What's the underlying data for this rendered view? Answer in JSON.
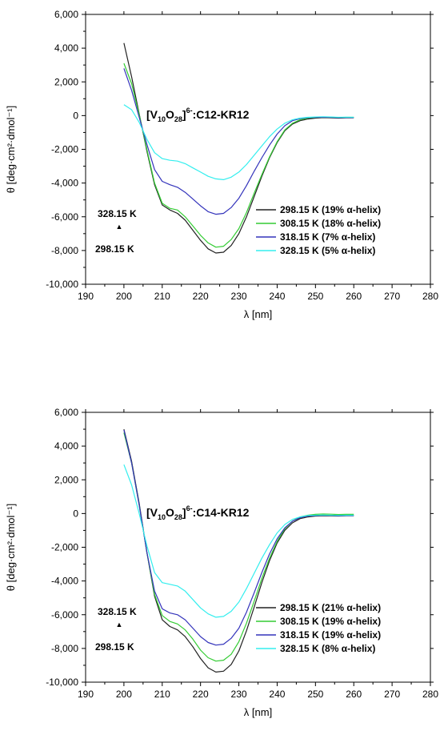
{
  "chart_data": [
    {
      "type": "line",
      "title_parts": {
        "base": "[V",
        "sub1": "10",
        "mid": "O",
        "sub2": "28",
        "close": "]",
        "sup": "6-",
        "rest": ":C12-KR12"
      },
      "xlabel": "λ [nm]",
      "ylabel": "θ [deg·cm²·dmol⁻¹]",
      "xlim": [
        190,
        280
      ],
      "ylim": [
        -10000,
        6000
      ],
      "x_ticks": [
        "190",
        "200",
        "210",
        "220",
        "230",
        "240",
        "250",
        "260",
        "270",
        "280"
      ],
      "y_ticks": [
        "6,000",
        "4,000",
        "2,000",
        "0",
        "-2,000",
        "-4,000",
        "-6,000",
        "-8,000",
        "-10,000"
      ],
      "annotation": {
        "upper": "328.15 K",
        "lower": "298.15 K",
        "arrow": "▲"
      },
      "legend_position": "lower-right",
      "series": [
        {
          "name": "298.15 K (19% α-helix)",
          "color": "#222222",
          "x": [
            200,
            202,
            204,
            206,
            208,
            210,
            212,
            214,
            216,
            218,
            220,
            222,
            224,
            226,
            228,
            230,
            232,
            234,
            236,
            238,
            240,
            242,
            244,
            246,
            248,
            250,
            252,
            254,
            256,
            258,
            260
          ],
          "y": [
            4300,
            2300,
            100,
            -2100,
            -4100,
            -5300,
            -5600,
            -5800,
            -6200,
            -6800,
            -7400,
            -7900,
            -8150,
            -8100,
            -7700,
            -7000,
            -6000,
            -4800,
            -3600,
            -2500,
            -1600,
            -900,
            -500,
            -300,
            -200,
            -150,
            -120,
            -130,
            -150,
            -130,
            -130
          ]
        },
        {
          "name": "308.15 K (18% α-helix)",
          "color": "#33cc33",
          "x": [
            200,
            202,
            204,
            206,
            208,
            210,
            212,
            214,
            216,
            218,
            220,
            222,
            224,
            226,
            228,
            230,
            232,
            234,
            236,
            238,
            240,
            242,
            244,
            246,
            248,
            250,
            252,
            254,
            256,
            258,
            260
          ],
          "y": [
            3100,
            1900,
            50,
            -2000,
            -4000,
            -5200,
            -5500,
            -5600,
            -6000,
            -6550,
            -7100,
            -7550,
            -7800,
            -7750,
            -7350,
            -6700,
            -5750,
            -4600,
            -3500,
            -2450,
            -1550,
            -850,
            -450,
            -250,
            -150,
            -100,
            -80,
            -90,
            -110,
            -100,
            -100
          ]
        },
        {
          "name": "318.15 K (7% α-helix)",
          "color": "#3333bb",
          "x": [
            200,
            202,
            204,
            206,
            208,
            210,
            212,
            214,
            216,
            218,
            220,
            222,
            224,
            226,
            228,
            230,
            232,
            234,
            236,
            238,
            240,
            242,
            244,
            246,
            248,
            250,
            252,
            254,
            256,
            258,
            260
          ],
          "y": [
            2800,
            1500,
            -100,
            -1700,
            -3200,
            -3900,
            -4100,
            -4250,
            -4550,
            -4950,
            -5350,
            -5700,
            -5850,
            -5800,
            -5450,
            -4900,
            -4150,
            -3300,
            -2500,
            -1750,
            -1100,
            -600,
            -300,
            -180,
            -120,
            -100,
            -90,
            -100,
            -120,
            -110,
            -120
          ]
        },
        {
          "name": "328.15 K (5% α-helix)",
          "color": "#33eeee",
          "x": [
            200,
            202,
            204,
            206,
            208,
            210,
            212,
            214,
            216,
            218,
            220,
            222,
            224,
            226,
            228,
            230,
            232,
            234,
            236,
            238,
            240,
            242,
            244,
            246,
            248,
            250,
            252,
            254,
            256,
            258,
            260
          ],
          "y": [
            650,
            350,
            -400,
            -1400,
            -2200,
            -2550,
            -2650,
            -2700,
            -2850,
            -3100,
            -3350,
            -3600,
            -3750,
            -3800,
            -3650,
            -3350,
            -2900,
            -2350,
            -1800,
            -1250,
            -800,
            -450,
            -250,
            -150,
            -100,
            -80,
            -70,
            -80,
            -100,
            -90,
            -100
          ]
        }
      ]
    },
    {
      "type": "line",
      "title_parts": {
        "base": "[V",
        "sub1": "10",
        "mid": "O",
        "sub2": "28",
        "close": "]",
        "sup": "6-",
        "rest": ":C14-KR12"
      },
      "xlabel": "λ [nm]",
      "ylabel": "θ [deg·cm²·dmol⁻¹]",
      "xlim": [
        190,
        280
      ],
      "ylim": [
        -10000,
        6000
      ],
      "x_ticks": [
        "190",
        "200",
        "210",
        "220",
        "230",
        "240",
        "250",
        "260",
        "270",
        "280"
      ],
      "y_ticks": [
        "6,000",
        "4,000",
        "2,000",
        "0",
        "-2,000",
        "-4,000",
        "-6,000",
        "-8,000",
        "-10,000"
      ],
      "annotation": {
        "upper": "328.15 K",
        "lower": "298.15 K",
        "arrow": "▲"
      },
      "legend_position": "lower-right",
      "series": [
        {
          "name": "298.15 K (21% α-helix)",
          "color": "#222222",
          "x": [
            200,
            202,
            204,
            206,
            208,
            210,
            212,
            214,
            216,
            218,
            220,
            222,
            224,
            226,
            228,
            230,
            232,
            234,
            236,
            238,
            240,
            242,
            244,
            246,
            248,
            250,
            252,
            254,
            256,
            258,
            260
          ],
          "y": [
            5000,
            3100,
            600,
            -2300,
            -4900,
            -6300,
            -6700,
            -6900,
            -7300,
            -7900,
            -8600,
            -9150,
            -9400,
            -9350,
            -8950,
            -8150,
            -6950,
            -5550,
            -4100,
            -2800,
            -1750,
            -1000,
            -550,
            -300,
            -200,
            -150,
            -130,
            -140,
            -150,
            -130,
            -130
          ]
        },
        {
          "name": "308.15 K (19% α-helix)",
          "color": "#33cc33",
          "x": [
            200,
            202,
            204,
            206,
            208,
            210,
            212,
            214,
            216,
            218,
            220,
            222,
            224,
            226,
            228,
            230,
            232,
            234,
            236,
            238,
            240,
            242,
            244,
            246,
            248,
            250,
            252,
            254,
            256,
            258,
            260
          ],
          "y": [
            4800,
            3000,
            500,
            -2300,
            -4800,
            -6050,
            -6400,
            -6550,
            -6900,
            -7450,
            -8100,
            -8550,
            -8750,
            -8700,
            -8350,
            -7600,
            -6500,
            -5200,
            -3850,
            -2650,
            -1650,
            -900,
            -450,
            -200,
            -100,
            -50,
            -30,
            -40,
            -60,
            -50,
            -50
          ]
        },
        {
          "name": "318.15 K (19% α-helix)",
          "color": "#3333bb",
          "x": [
            200,
            202,
            204,
            206,
            208,
            210,
            212,
            214,
            216,
            218,
            220,
            222,
            224,
            226,
            228,
            230,
            232,
            234,
            236,
            238,
            240,
            242,
            244,
            246,
            248,
            250,
            252,
            254,
            256,
            258,
            260
          ],
          "y": [
            4950,
            3000,
            500,
            -2300,
            -4600,
            -5650,
            -5900,
            -6000,
            -6300,
            -6800,
            -7300,
            -7650,
            -7800,
            -7750,
            -7400,
            -6800,
            -5850,
            -4700,
            -3500,
            -2400,
            -1500,
            -850,
            -450,
            -250,
            -150,
            -120,
            -100,
            -110,
            -130,
            -120,
            -120
          ]
        },
        {
          "name": "328.15 K (8% α-helix)",
          "color": "#33eeee",
          "x": [
            200,
            202,
            204,
            206,
            208,
            210,
            212,
            214,
            216,
            218,
            220,
            222,
            224,
            226,
            228,
            230,
            232,
            234,
            236,
            238,
            240,
            242,
            244,
            246,
            248,
            250,
            252,
            254,
            256,
            258,
            260
          ],
          "y": [
            2900,
            1700,
            0,
            -1900,
            -3500,
            -4100,
            -4200,
            -4300,
            -4600,
            -5100,
            -5600,
            -5950,
            -6150,
            -6100,
            -5800,
            -5250,
            -4450,
            -3550,
            -2650,
            -1850,
            -1150,
            -650,
            -350,
            -200,
            -120,
            -100,
            -90,
            -100,
            -110,
            -100,
            -100
          ]
        }
      ]
    }
  ]
}
